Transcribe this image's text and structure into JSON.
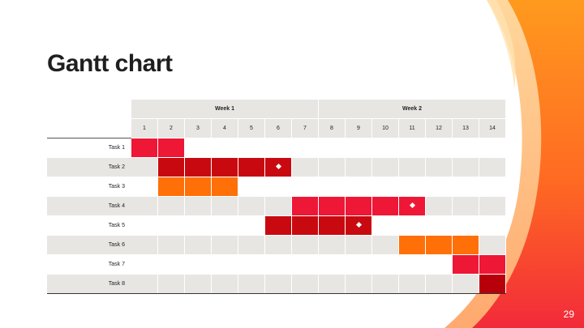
{
  "title": "Gantt chart",
  "page_number": "29",
  "colors": {
    "bright_red": "#ee1736",
    "dark_red": "#c80a10",
    "orange": "#ff7008",
    "deep_red": "#b8000a",
    "row_stripe": "#e8e6e3"
  },
  "weeks": [
    "Week 1",
    "Week 2"
  ],
  "days": [
    "1",
    "2",
    "3",
    "4",
    "5",
    "6",
    "7",
    "8",
    "9",
    "10",
    "11",
    "12",
    "13",
    "14"
  ],
  "tasks": [
    {
      "name": "Task 1",
      "start": 1,
      "end": 2,
      "color": "#ee1736",
      "milestone": null
    },
    {
      "name": "Task 2",
      "start": 2,
      "end": 6,
      "color": "#c80a10",
      "milestone": 6
    },
    {
      "name": "Task 3",
      "start": 2,
      "end": 4,
      "color": "#ff7008",
      "milestone": null
    },
    {
      "name": "Task 4",
      "start": 7,
      "end": 11,
      "color": "#ee1736",
      "milestone": 11
    },
    {
      "name": "Task 5",
      "start": 6,
      "end": 9,
      "color": "#c80a10",
      "milestone": 9
    },
    {
      "name": "Task 6",
      "start": 11,
      "end": 13,
      "color": "#ff7008",
      "milestone": null
    },
    {
      "name": "Task 7",
      "start": 13,
      "end": 14,
      "color": "#ee1736",
      "milestone": null
    },
    {
      "name": "Task 8",
      "start": 14,
      "end": 14,
      "color": "#b8000a",
      "milestone": null
    }
  ]
}
